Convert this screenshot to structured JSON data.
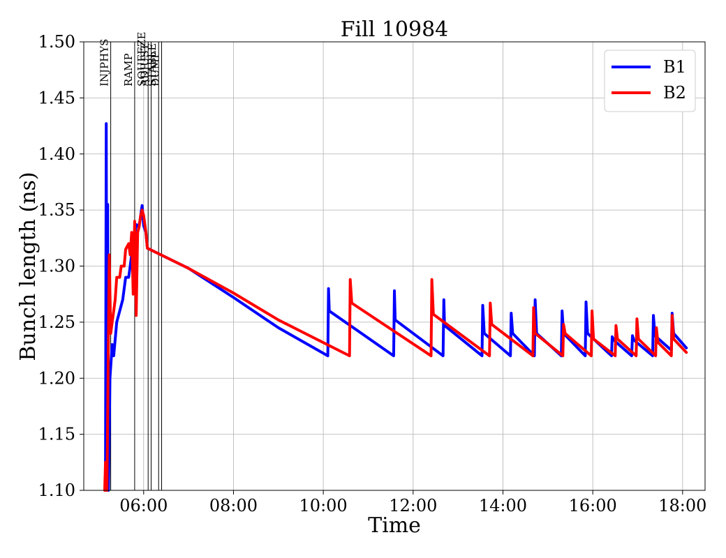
{
  "chart_data": {
    "type": "line",
    "title": "Fill 10984",
    "xlabel": "Time",
    "ylabel": "Bunch length (ns)",
    "xlim": [
      "04:40",
      "18:30"
    ],
    "ylim": [
      1.1,
      1.5
    ],
    "grid": true,
    "legend_placement": "top-right",
    "x_ticks": [
      "06:00",
      "08:00",
      "10:00",
      "12:00",
      "14:00",
      "16:00",
      "18:00"
    ],
    "y_ticks": [
      "1.10",
      "1.15",
      "1.20",
      "1.25",
      "1.30",
      "1.35",
      "1.40",
      "1.45",
      "1.50"
    ],
    "phases": [
      {
        "label": "INJPHYS",
        "time": "05:16"
      },
      {
        "label": "RAMP",
        "time": "05:48"
      },
      {
        "label": "SQUEEZE",
        "time": "06:06"
      },
      {
        "label": "ADJUST",
        "time": "06:10"
      },
      {
        "label": "STABLE",
        "time": "06:20"
      },
      {
        "label": "DUMP",
        "time": "06:24"
      }
    ],
    "series": [
      {
        "name": "B1",
        "color": "#0000ff",
        "points": [
          [
            "05:09",
            1.11
          ],
          [
            "05:10",
            1.427
          ],
          [
            "05:11",
            1.1
          ],
          [
            "05:12",
            1.355
          ],
          [
            "05:13",
            1.1
          ],
          [
            "05:15",
            1.2
          ],
          [
            "05:18",
            1.23
          ],
          [
            "05:20",
            1.22
          ],
          [
            "05:24",
            1.25
          ],
          [
            "05:28",
            1.26
          ],
          [
            "05:32",
            1.27
          ],
          [
            "05:36",
            1.29
          ],
          [
            "05:40",
            1.29
          ],
          [
            "05:42",
            1.3
          ],
          [
            "05:44",
            1.31
          ],
          [
            "05:47",
            1.323
          ],
          [
            "05:50",
            1.337
          ],
          [
            "05:53",
            1.335
          ],
          [
            "05:55",
            1.34
          ],
          [
            "05:57",
            1.35
          ],
          [
            "05:58",
            1.354
          ],
          [
            "06:00",
            1.336
          ],
          [
            "06:03",
            1.33
          ],
          [
            "06:05",
            1.316
          ],
          [
            "07:00",
            1.298
          ],
          [
            "08:00",
            1.272
          ],
          [
            "09:00",
            1.245
          ],
          [
            "10:06",
            1.22
          ],
          [
            "10:07",
            1.28
          ],
          [
            "10:08",
            1.26
          ],
          [
            "11:34",
            1.22
          ],
          [
            "11:35",
            1.278
          ],
          [
            "11:36",
            1.252
          ],
          [
            "12:40",
            1.22
          ],
          [
            "12:41",
            1.27
          ],
          [
            "12:42",
            1.247
          ],
          [
            "13:32",
            1.22
          ],
          [
            "13:33",
            1.265
          ],
          [
            "13:35",
            1.24
          ],
          [
            "14:10",
            1.22
          ],
          [
            "14:11",
            1.258
          ],
          [
            "14:13",
            1.24
          ],
          [
            "14:42",
            1.22
          ],
          [
            "14:43",
            1.27
          ],
          [
            "14:45",
            1.24
          ],
          [
            "15:18",
            1.22
          ],
          [
            "15:19",
            1.26
          ],
          [
            "15:21",
            1.24
          ],
          [
            "15:50",
            1.22
          ],
          [
            "15:51",
            1.268
          ],
          [
            "15:53",
            1.24
          ],
          [
            "16:25",
            1.22
          ],
          [
            "16:26",
            1.237
          ],
          [
            "16:28",
            1.234
          ],
          [
            "16:52",
            1.22
          ],
          [
            "16:53",
            1.238
          ],
          [
            "16:55",
            1.234
          ],
          [
            "17:20",
            1.22
          ],
          [
            "17:21",
            1.256
          ],
          [
            "17:23",
            1.238
          ],
          [
            "17:45",
            1.225
          ],
          [
            "17:46",
            1.258
          ],
          [
            "17:48",
            1.24
          ],
          [
            "18:05",
            1.227
          ]
        ]
      },
      {
        "name": "B2",
        "color": "#ff0000",
        "points": [
          [
            "05:08",
            1.1
          ],
          [
            "05:09",
            1.125
          ],
          [
            "05:10",
            1.1
          ],
          [
            "05:11",
            1.1
          ],
          [
            "05:14",
            1.31
          ],
          [
            "05:16",
            1.24
          ],
          [
            "05:18",
            1.25
          ],
          [
            "05:20",
            1.26
          ],
          [
            "05:22",
            1.27
          ],
          [
            "05:24",
            1.29
          ],
          [
            "05:28",
            1.29
          ],
          [
            "05:30",
            1.3
          ],
          [
            "05:34",
            1.3
          ],
          [
            "05:36",
            1.315
          ],
          [
            "05:40",
            1.32
          ],
          [
            "05:42",
            1.31
          ],
          [
            "05:44",
            1.33
          ],
          [
            "05:46",
            1.275
          ],
          [
            "05:48",
            1.34
          ],
          [
            "05:50",
            1.256
          ],
          [
            "05:52",
            1.33
          ],
          [
            "05:54",
            1.335
          ],
          [
            "05:56",
            1.345
          ],
          [
            "05:58",
            1.35
          ],
          [
            "06:00",
            1.345
          ],
          [
            "06:03",
            1.33
          ],
          [
            "06:05",
            1.316
          ],
          [
            "07:00",
            1.298
          ],
          [
            "08:00",
            1.276
          ],
          [
            "09:00",
            1.252
          ],
          [
            "10:35",
            1.22
          ],
          [
            "10:36",
            1.288
          ],
          [
            "10:38",
            1.267
          ],
          [
            "12:24",
            1.22
          ],
          [
            "12:25",
            1.288
          ],
          [
            "12:27",
            1.257
          ],
          [
            "13:42",
            1.22
          ],
          [
            "13:43",
            1.267
          ],
          [
            "13:45",
            1.248
          ],
          [
            "14:40",
            1.22
          ],
          [
            "14:41",
            1.263
          ],
          [
            "14:43",
            1.24
          ],
          [
            "15:20",
            1.22
          ],
          [
            "15:21",
            1.248
          ],
          [
            "15:23",
            1.24
          ],
          [
            "15:58",
            1.22
          ],
          [
            "15:59",
            1.26
          ],
          [
            "16:01",
            1.235
          ],
          [
            "16:30",
            1.22
          ],
          [
            "16:31",
            1.247
          ],
          [
            "16:33",
            1.235
          ],
          [
            "16:58",
            1.22
          ],
          [
            "16:59",
            1.253
          ],
          [
            "17:01",
            1.235
          ],
          [
            "17:24",
            1.22
          ],
          [
            "17:25",
            1.245
          ],
          [
            "17:27",
            1.232
          ],
          [
            "17:45",
            1.22
          ],
          [
            "17:46",
            1.256
          ],
          [
            "17:48",
            1.235
          ],
          [
            "18:05",
            1.223
          ]
        ]
      }
    ]
  }
}
